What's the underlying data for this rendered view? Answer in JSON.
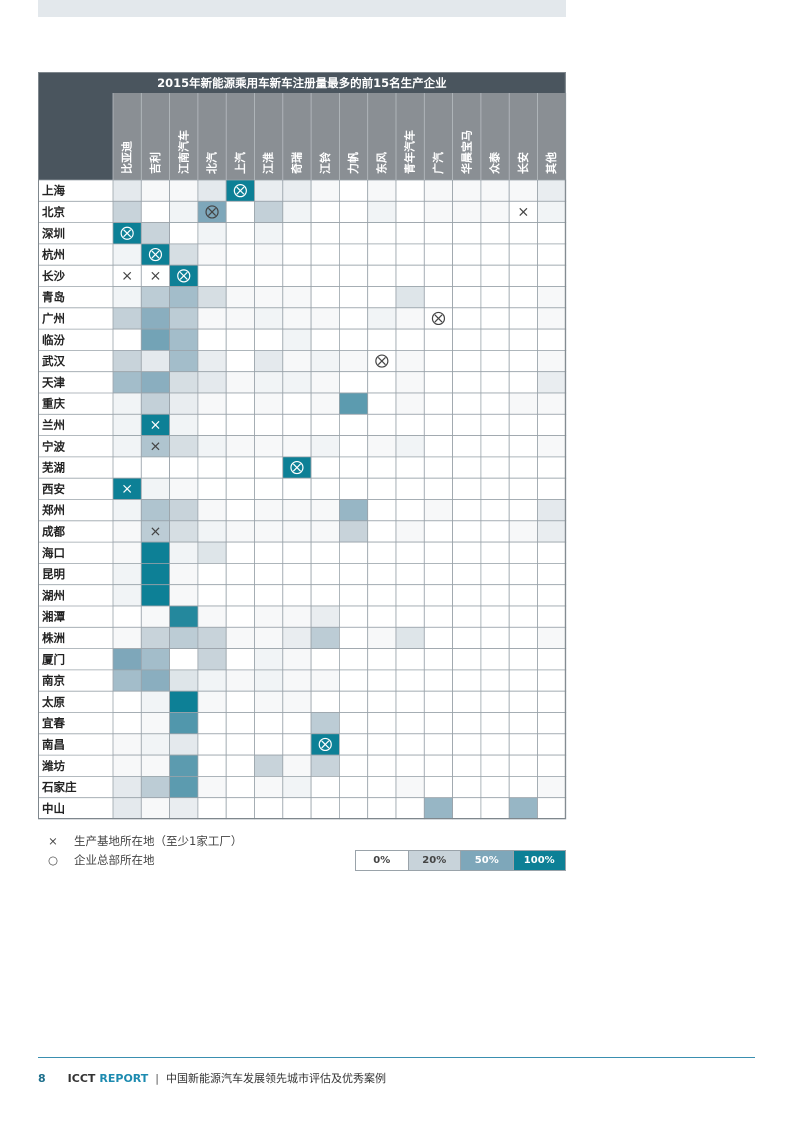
{
  "chart_data": {
    "type": "heatmap",
    "title": "2015年新能源乘用车新车注册量最多的前15名生产企业",
    "columns": [
      "比亚迪",
      "吉利",
      "江南汽车",
      "北汽",
      "上汽",
      "江淮",
      "奇瑞",
      "江铃",
      "力帆",
      "东风",
      "青年汽车",
      "广汽",
      "华晨宝马",
      "众泰",
      "长安",
      "其他"
    ],
    "rows": [
      "上海",
      "北京",
      "深圳",
      "杭州",
      "长沙",
      "青岛",
      "广州",
      "临汾",
      "武汉",
      "天津",
      "重庆",
      "兰州",
      "宁波",
      "芜湖",
      "西安",
      "郑州",
      "成都",
      "海口",
      "昆明",
      "湖州",
      "湘潭",
      "株洲",
      "厦门",
      "南京",
      "太原",
      "宜春",
      "南昌",
      "潍坊",
      "石家庄",
      "中山"
    ],
    "values": [
      [
        10,
        3,
        3,
        10,
        100,
        8,
        8,
        3,
        0,
        3,
        0,
        3,
        3,
        3,
        3,
        8
      ],
      [
        20,
        0,
        5,
        50,
        0,
        22,
        5,
        0,
        0,
        5,
        0,
        3,
        3,
        3,
        0,
        5
      ],
      [
        100,
        20,
        0,
        5,
        0,
        5,
        0,
        0,
        0,
        0,
        0,
        0,
        0,
        0,
        0,
        0
      ],
      [
        5,
        100,
        15,
        3,
        0,
        3,
        0,
        0,
        0,
        0,
        0,
        0,
        0,
        0,
        0,
        0
      ],
      [
        0,
        0,
        100,
        0,
        0,
        0,
        0,
        0,
        0,
        0,
        0,
        0,
        0,
        0,
        0,
        0
      ],
      [
        5,
        25,
        35,
        15,
        3,
        3,
        3,
        0,
        0,
        0,
        12,
        0,
        0,
        0,
        0,
        3
      ],
      [
        22,
        45,
        25,
        3,
        3,
        5,
        3,
        3,
        0,
        5,
        3,
        0,
        0,
        0,
        0,
        3
      ],
      [
        0,
        55,
        35,
        0,
        0,
        0,
        5,
        0,
        0,
        0,
        0,
        0,
        0,
        0,
        0,
        0
      ],
      [
        20,
        10,
        35,
        8,
        0,
        10,
        3,
        5,
        3,
        0,
        3,
        0,
        0,
        0,
        0,
        3
      ],
      [
        35,
        45,
        15,
        10,
        3,
        5,
        5,
        3,
        0,
        0,
        3,
        0,
        0,
        0,
        0,
        8
      ],
      [
        5,
        22,
        8,
        3,
        0,
        3,
        0,
        3,
        65,
        0,
        3,
        0,
        0,
        0,
        3,
        3
      ],
      [
        5,
        100,
        5,
        0,
        0,
        0,
        0,
        0,
        0,
        0,
        0,
        0,
        0,
        0,
        0,
        0
      ],
      [
        5,
        30,
        15,
        5,
        3,
        3,
        3,
        5,
        0,
        3,
        5,
        0,
        0,
        0,
        0,
        3
      ],
      [
        0,
        0,
        0,
        0,
        0,
        0,
        100,
        0,
        0,
        0,
        0,
        0,
        0,
        0,
        0,
        0
      ],
      [
        100,
        5,
        3,
        0,
        0,
        0,
        0,
        0,
        0,
        0,
        0,
        0,
        0,
        0,
        0,
        0
      ],
      [
        5,
        30,
        20,
        3,
        0,
        3,
        3,
        3,
        40,
        0,
        0,
        3,
        0,
        0,
        0,
        10
      ],
      [
        3,
        25,
        15,
        5,
        3,
        3,
        3,
        3,
        20,
        0,
        3,
        0,
        0,
        0,
        3,
        8
      ],
      [
        3,
        100,
        5,
        12,
        0,
        0,
        0,
        0,
        0,
        0,
        0,
        0,
        0,
        0,
        0,
        0
      ],
      [
        5,
        100,
        3,
        0,
        0,
        0,
        0,
        0,
        0,
        0,
        0,
        0,
        0,
        0,
        0,
        0
      ],
      [
        5,
        100,
        3,
        0,
        0,
        0,
        0,
        0,
        0,
        0,
        0,
        0,
        0,
        0,
        0,
        0
      ],
      [
        0,
        3,
        90,
        3,
        0,
        3,
        3,
        8,
        0,
        0,
        0,
        0,
        0,
        0,
        0,
        0
      ],
      [
        3,
        20,
        25,
        20,
        3,
        3,
        8,
        25,
        0,
        3,
        12,
        0,
        0,
        0,
        0,
        3
      ],
      [
        50,
        35,
        0,
        20,
        0,
        5,
        3,
        0,
        0,
        0,
        0,
        0,
        0,
        0,
        0,
        0
      ],
      [
        35,
        45,
        12,
        5,
        3,
        5,
        3,
        3,
        0,
        0,
        0,
        0,
        0,
        0,
        0,
        0
      ],
      [
        0,
        5,
        100,
        3,
        0,
        3,
        3,
        0,
        0,
        0,
        0,
        0,
        0,
        0,
        0,
        0
      ],
      [
        0,
        3,
        70,
        0,
        0,
        0,
        0,
        25,
        0,
        0,
        0,
        0,
        0,
        0,
        0,
        0
      ],
      [
        3,
        5,
        10,
        0,
        0,
        0,
        0,
        100,
        0,
        0,
        0,
        0,
        0,
        0,
        0,
        0
      ],
      [
        3,
        3,
        65,
        0,
        0,
        20,
        3,
        20,
        0,
        0,
        0,
        0,
        0,
        0,
        0,
        0
      ],
      [
        10,
        25,
        65,
        3,
        0,
        3,
        5,
        0,
        0,
        0,
        3,
        0,
        0,
        0,
        0,
        3
      ],
      [
        10,
        3,
        8,
        0,
        0,
        0,
        0,
        0,
        0,
        0,
        0,
        40,
        0,
        0,
        40,
        0
      ]
    ],
    "markers": [
      {
        "row": 0,
        "col": 4,
        "type": "headquarters"
      },
      {
        "row": 1,
        "col": 3,
        "type": "headquarters"
      },
      {
        "row": 1,
        "col": 14,
        "type": "production"
      },
      {
        "row": 2,
        "col": 0,
        "type": "headquarters"
      },
      {
        "row": 3,
        "col": 1,
        "type": "headquarters"
      },
      {
        "row": 4,
        "col": 0,
        "type": "production"
      },
      {
        "row": 4,
        "col": 1,
        "type": "production"
      },
      {
        "row": 4,
        "col": 2,
        "type": "headquarters"
      },
      {
        "row": 6,
        "col": 11,
        "type": "headquarters"
      },
      {
        "row": 8,
        "col": 9,
        "type": "headquarters"
      },
      {
        "row": 11,
        "col": 1,
        "type": "production"
      },
      {
        "row": 12,
        "col": 1,
        "type": "production"
      },
      {
        "row": 13,
        "col": 6,
        "type": "headquarters"
      },
      {
        "row": 14,
        "col": 0,
        "type": "production"
      },
      {
        "row": 16,
        "col": 1,
        "type": "production"
      },
      {
        "row": 26,
        "col": 7,
        "type": "headquarters"
      }
    ],
    "scale_labels": [
      "0%",
      "20%",
      "50%",
      "100%"
    ],
    "scale_colors": [
      "#ffffff",
      "#c8d3da",
      "#7ea7ba",
      "#0d8096"
    ]
  },
  "legend": {
    "cross_symbol": "×",
    "cross_text": "生产基地所在地（至少1家工厂）",
    "circle_symbol": "○",
    "circle_text": "企业总部所在地"
  },
  "footer": {
    "page": "8",
    "brand": "ICCT",
    "report": "REPORT",
    "separator": "|",
    "subtitle": "中国新能源汽车发展领先城市评估及优秀案例"
  }
}
